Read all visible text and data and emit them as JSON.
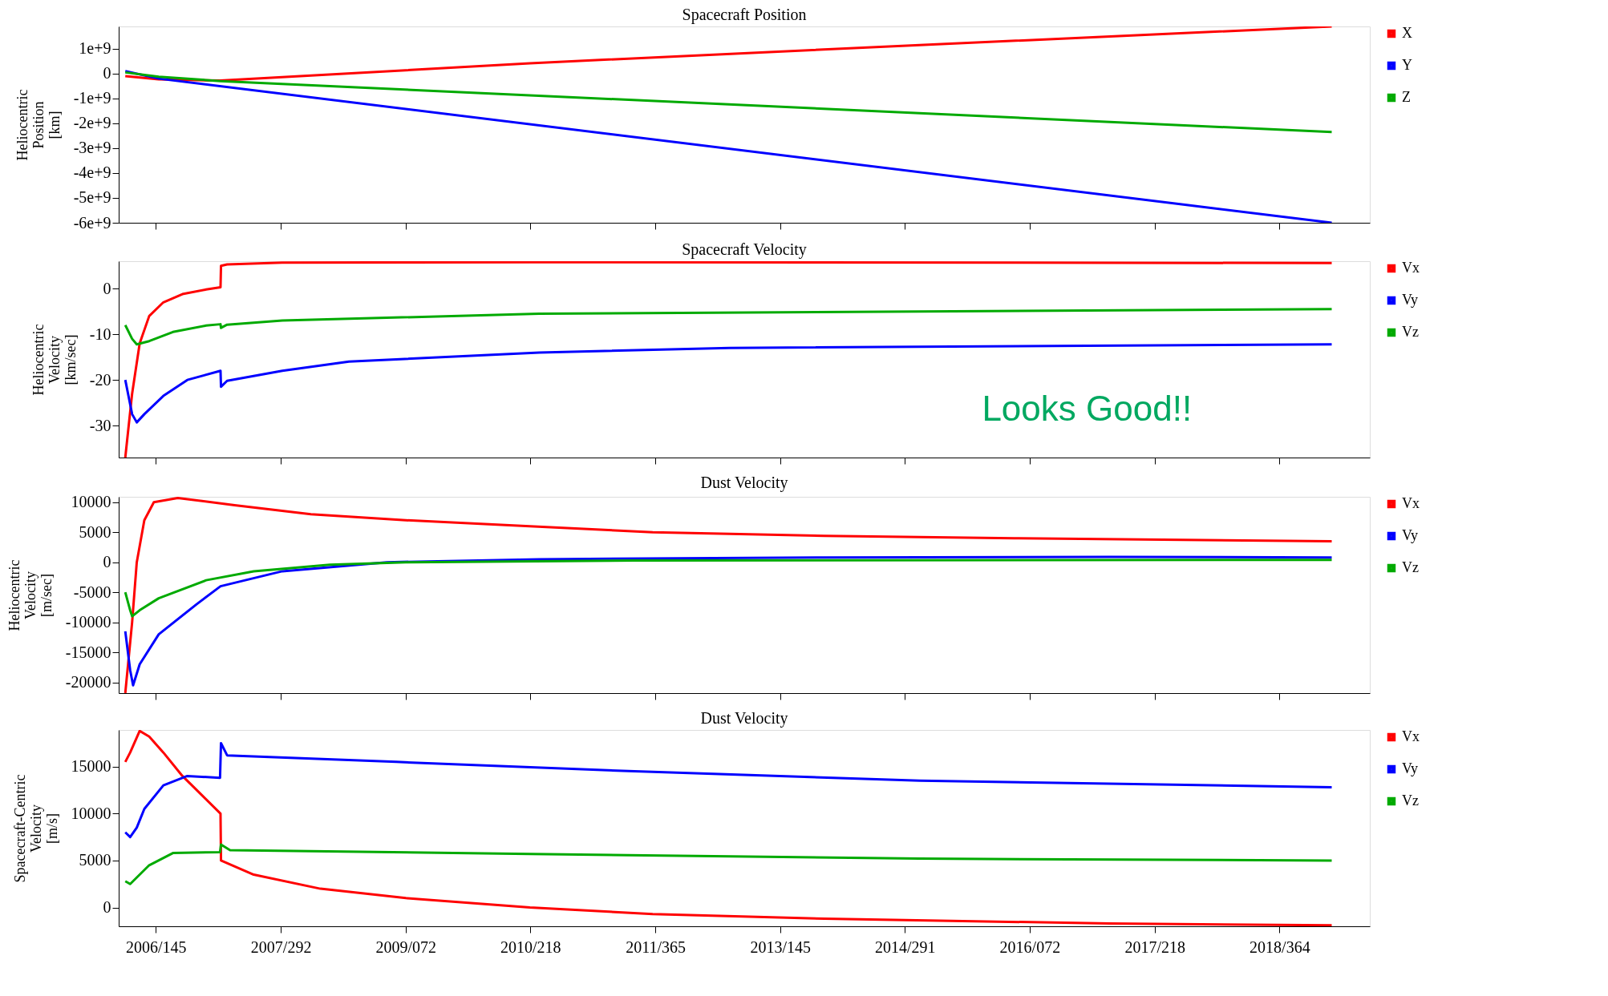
{
  "chart_data": [
    {
      "type": "line",
      "title": "Spacecraft Position",
      "ylabel": "Heliocentric\nPosition\n[km]",
      "legend": "top right",
      "tick_labels": "y",
      "xlim": [
        "2005-12-24",
        "2020-01-04"
      ],
      "xticks": [
        {
          "value": "2006-05-25",
          "label": null
        },
        {
          "value": "2007-10-19",
          "label": null
        },
        {
          "value": "2009-03-13",
          "label": null
        },
        {
          "value": "2010-08-06",
          "label": null
        },
        {
          "value": "2011-12-31",
          "label": null
        },
        {
          "value": "2013-05-25",
          "label": null
        },
        {
          "value": "2014-10-18",
          "label": null
        },
        {
          "value": "2016-03-12",
          "label": null
        },
        {
          "value": "2017-08-06",
          "label": null
        },
        {
          "value": "2018-12-30",
          "label": null
        }
      ],
      "ylim": [
        -6000000000,
        1900000000
      ],
      "yticks": [
        {
          "value": 1000000000,
          "label": "1e+9"
        },
        0,
        {
          "value": -1000000000,
          "label": "-1e+9"
        },
        {
          "value": -2000000000,
          "label": "-2e+9"
        },
        {
          "value": -3000000000,
          "label": "-3e+9"
        },
        {
          "value": -4000000000,
          "label": "-4e+9"
        },
        {
          "value": -5000000000,
          "label": "-5e+9"
        },
        {
          "value": -6000000000,
          "label": "-6e+9"
        }
      ],
      "series": [
        {
          "name": "X",
          "color": "#ff0000",
          "x": [
            "2006-01-20",
            "2006-06-06",
            "2007-02-14",
            "2010-08-04",
            "2014-12-17",
            "2019-08-01"
          ],
          "values": [
            -100000000,
            -230000000,
            -280000000,
            420000000,
            1150000000,
            1900000000
          ]
        },
        {
          "name": "Y",
          "color": "#0000ff",
          "x": [
            "2006-01-20",
            "2006-06-06",
            "2019-08-01"
          ],
          "values": [
            100000000,
            -200000000,
            -6000000000
          ]
        },
        {
          "name": "Z",
          "color": "#00aa00",
          "x": [
            "2006-01-20",
            "2006-06-06",
            "2007-02-14",
            "2019-08-01"
          ],
          "values": [
            50000000,
            -120000000,
            -300000000,
            -2350000000
          ]
        }
      ]
    },
    {
      "type": "line",
      "title": "Spacecraft Velocity",
      "ylabel": "Heliocentric\nVelocity\n[km/sec]",
      "legend": "top right",
      "tick_labels": "y",
      "annotations": [
        "Looks Good!!"
      ],
      "xlim": [
        "2005-12-24",
        "2020-01-04"
      ],
      "xticks": [
        {
          "value": "2006-05-25",
          "label": null
        },
        {
          "value": "2007-10-19",
          "label": null
        },
        {
          "value": "2009-03-13",
          "label": null
        },
        {
          "value": "2010-08-06",
          "label": null
        },
        {
          "value": "2011-12-31",
          "label": null
        },
        {
          "value": "2013-05-25",
          "label": null
        },
        {
          "value": "2014-10-18",
          "label": null
        },
        {
          "value": "2016-03-12",
          "label": null
        },
        {
          "value": "2017-08-06",
          "label": null
        },
        {
          "value": "2018-12-30",
          "label": null
        }
      ],
      "ylim": [
        -37,
        6
      ],
      "yticks": [
        0,
        -10,
        -20,
        -30
      ],
      "series": [
        {
          "name": "Vx",
          "color": "#ff0000",
          "x": [
            "2006-01-20",
            "2006-02-17",
            "2006-03-20",
            "2006-04-28",
            "2006-06-25",
            "2006-09-11",
            "2006-12-17",
            "2007-02-14",
            "2007-02-16",
            "2007-03-13",
            "2007-10-25",
            "2010-08-04",
            "2019-08-01"
          ],
          "values": [
            -37,
            -23,
            -12,
            -6,
            -3,
            -1.2,
            -0.2,
            0.3,
            5,
            5.3,
            5.7,
            5.8,
            5.6
          ]
        },
        {
          "name": "Vy",
          "color": "#0000ff",
          "x": [
            "2006-01-20",
            "2006-02-17",
            "2006-03-08",
            "2006-04-08",
            "2006-06-25",
            "2006-10-01",
            "2007-02-14",
            "2007-02-16",
            "2007-03-13",
            "2007-10-25",
            "2008-07-24",
            "2010-09-12",
            "2012-10-29",
            "2019-08-01"
          ],
          "values": [
            -20,
            -27.5,
            -29.3,
            -27.5,
            -23.5,
            -20,
            -18,
            -21.5,
            -20.2,
            -18,
            -16,
            -14,
            -13,
            -12.2
          ]
        },
        {
          "name": "Vz",
          "color": "#00aa00",
          "x": [
            "2006-01-20",
            "2006-02-17",
            "2006-03-08",
            "2006-04-28",
            "2006-08-03",
            "2006-12-17",
            "2007-02-14",
            "2007-02-16",
            "2007-03-13",
            "2007-10-25",
            "2010-09-12",
            "2014-12-17",
            "2019-08-01"
          ],
          "values": [
            -8,
            -11,
            -12.2,
            -11.5,
            -9.5,
            -8.1,
            -7.8,
            -8.6,
            -7.9,
            -7,
            -5.5,
            -5,
            -4.5
          ]
        }
      ]
    },
    {
      "type": "line",
      "title": "Dust Velocity",
      "ylabel": "Heliocentric\nVelocity\n[m/sec]",
      "legend": "top right",
      "tick_labels": "y",
      "xlim": [
        "2005-12-24",
        "2020-01-04"
      ],
      "xticks": [
        {
          "value": "2006-05-25",
          "label": null
        },
        {
          "value": "2007-10-19",
          "label": null
        },
        {
          "value": "2009-03-13",
          "label": null
        },
        {
          "value": "2010-08-06",
          "label": null
        },
        {
          "value": "2011-12-31",
          "label": null
        },
        {
          "value": "2013-05-25",
          "label": null
        },
        {
          "value": "2014-10-18",
          "label": null
        },
        {
          "value": "2016-03-12",
          "label": null
        },
        {
          "value": "2017-08-06",
          "label": null
        },
        {
          "value": "2018-12-30",
          "label": null
        }
      ],
      "ylim": [
        -21800,
        10900
      ],
      "yticks": [
        10000,
        5000,
        0,
        -5000,
        -10000,
        -15000,
        -20000
      ],
      "series": [
        {
          "name": "Vx",
          "color": "#ff0000",
          "x": [
            "2006-01-20",
            "2006-02-17",
            "2006-03-08",
            "2006-04-08",
            "2006-05-17",
            "2006-08-23",
            "2007-04-13",
            "2008-02-19",
            "2009-03-14",
            "2010-08-04",
            "2011-12-20",
            "2013-11-22",
            "2016-01-10",
            "2019-08-01"
          ],
          "values": [
            -21800,
            -10000,
            0,
            7000,
            10000,
            10700,
            9500,
            8000,
            7000,
            6000,
            5000,
            4400,
            4000,
            3500
          ]
        },
        {
          "name": "Vy",
          "color": "#0000ff",
          "x": [
            "2006-01-20",
            "2006-02-09",
            "2006-02-21",
            "2006-03-20",
            "2006-06-06",
            "2006-11-08",
            "2007-02-14",
            "2007-10-25",
            "2008-12-26",
            "2010-09-12",
            "2013-11-22",
            "2017-02-03",
            "2019-08-01"
          ],
          "values": [
            -11500,
            -18000,
            -20500,
            -17000,
            -12000,
            -7000,
            -4000,
            -1500,
            0,
            500,
            800,
            900,
            800
          ]
        },
        {
          "name": "Vz",
          "color": "#00aa00",
          "x": [
            "2006-01-20",
            "2006-02-09",
            "2006-02-17",
            "2006-03-20",
            "2006-06-06",
            "2006-12-17",
            "2007-06-30",
            "2008-05-07",
            "2009-03-14",
            "2011-10-06",
            "2019-08-01"
          ],
          "values": [
            -5000,
            -8000,
            -9000,
            -8000,
            -6000,
            -3000,
            -1500,
            -400,
            0,
            300,
            400
          ]
        }
      ]
    },
    {
      "type": "line",
      "title": "Dust Velocity",
      "ylabel": "Spacecraft-Centric\nVelocity\n[m/s]",
      "legend": "top right",
      "xlim": [
        "2005-12-24",
        "2020-01-04"
      ],
      "xticks": [
        {
          "value": "2006-05-25",
          "label": "2006/145"
        },
        {
          "value": "2007-10-19",
          "label": "2007/292"
        },
        {
          "value": "2009-03-13",
          "label": "2009/072"
        },
        {
          "value": "2010-08-06",
          "label": "2010/218"
        },
        {
          "value": "2011-12-31",
          "label": "2011/365"
        },
        {
          "value": "2013-05-25",
          "label": "2013/145"
        },
        {
          "value": "2014-10-18",
          "label": "2014/291"
        },
        {
          "value": "2016-03-12",
          "label": "2016/072"
        },
        {
          "value": "2017-08-06",
          "label": "2017/218"
        },
        {
          "value": "2018-12-30",
          "label": "2018/364"
        }
      ],
      "ylim": [
        -2000,
        18900
      ],
      "yticks": [
        15000,
        10000,
        5000,
        0
      ],
      "series": [
        {
          "name": "Vx",
          "color": "#ff0000",
          "x": [
            "2006-01-20",
            "2006-02-09",
            "2006-03-20",
            "2006-04-28",
            "2006-06-25",
            "2006-09-11",
            "2006-11-28",
            "2007-02-14",
            "2007-02-16",
            "2007-06-30",
            "2008-03-29",
            "2009-03-14",
            "2010-08-04",
            "2011-12-20",
            "2013-11-22",
            "2017-02-03",
            "2019-08-01"
          ],
          "values": [
            15500,
            16500,
            18800,
            18200,
            16500,
            14000,
            12000,
            10000,
            5000,
            3500,
            2000,
            1000,
            0,
            -700,
            -1200,
            -1700,
            -1900
          ]
        },
        {
          "name": "Vy",
          "color": "#0000ff",
          "x": [
            "2006-01-20",
            "2006-02-09",
            "2006-03-08",
            "2006-04-08",
            "2006-06-25",
            "2006-10-01",
            "2007-02-12",
            "2007-02-16",
            "2007-03-13",
            "2009-02-03",
            "2011-10-06",
            "2014-12-17",
            "2019-08-01"
          ],
          "values": [
            8000,
            7500,
            8500,
            10500,
            13000,
            14000,
            13800,
            17500,
            16200,
            15500,
            14500,
            13500,
            12800
          ]
        },
        {
          "name": "Vz",
          "color": "#00aa00",
          "x": [
            "2006-01-20",
            "2006-02-09",
            "2006-04-28",
            "2006-08-03",
            "2007-02-12",
            "2007-02-16",
            "2007-03-25",
            "2010-08-04",
            "2014-12-17",
            "2019-08-01"
          ],
          "values": [
            2800,
            2500,
            4500,
            5800,
            5900,
            6700,
            6100,
            5700,
            5200,
            5000
          ]
        }
      ]
    }
  ]
}
